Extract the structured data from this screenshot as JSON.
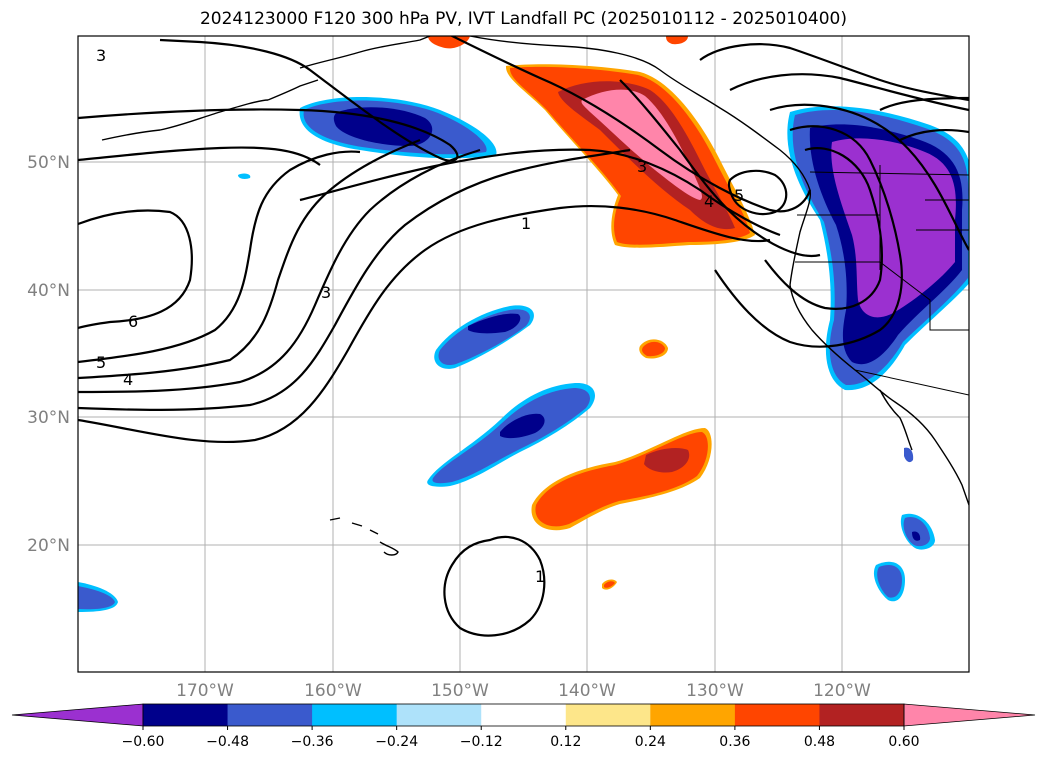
{
  "title": "2024123000 F120 300 hPa PV, IVT Landfall PC (2025010112 - 2025010400)",
  "map": {
    "lon_ticks": [
      "170°W",
      "160°W",
      "150°W",
      "140°W",
      "130°W",
      "120°W"
    ],
    "lat_ticks": [
      "50°N",
      "40°N",
      "30°N",
      "20°N"
    ],
    "contour_labels": [
      "3",
      "1",
      "3",
      "6",
      "5",
      "4",
      "3",
      "4",
      "5",
      "1"
    ]
  },
  "colorbar": {
    "ticks": [
      "−0.60",
      "−0.48",
      "−0.36",
      "−0.24",
      "−0.12",
      "0.12",
      "0.24",
      "0.36",
      "0.48",
      "0.60"
    ],
    "colors": [
      "#9b30d0",
      "#00008b",
      "#3a5acd",
      "#00bfff",
      "#aee2fa",
      "#ffffff",
      "#fde68a",
      "#ffa500",
      "#ff4500",
      "#b22222",
      "#ff85aa"
    ],
    "extend": "both"
  },
  "styles": {
    "neg_strong": "#00008b",
    "neg_mid": "#3a5acd",
    "neg_weak": "#00bfff",
    "neg_extreme": "#9b30d0",
    "pos_weak": "#ffa500",
    "pos_mid": "#ff4500",
    "pos_strong": "#b22222",
    "pos_extreme": "#ff85aa"
  }
}
